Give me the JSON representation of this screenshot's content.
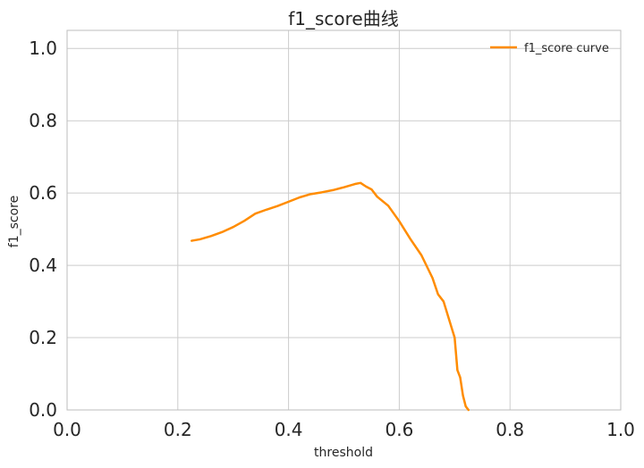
{
  "chart_data": {
    "type": "line",
    "title": "f1_score曲线",
    "xlabel": "threshold",
    "ylabel": "f1_score",
    "xlim": [
      0.0,
      1.0
    ],
    "ylim": [
      0.0,
      1.05
    ],
    "x_ticks": [
      "0.0",
      "0.2",
      "0.4",
      "0.6",
      "0.8",
      "1.0"
    ],
    "y_ticks": [
      "0.0",
      "0.2",
      "0.4",
      "0.6",
      "0.8",
      "1.0"
    ],
    "grid": true,
    "legend": "top-right",
    "series": [
      {
        "name": "f1_score curve",
        "color": "#ff8c00",
        "points": [
          [
            0.225,
            0.468
          ],
          [
            0.24,
            0.472
          ],
          [
            0.26,
            0.481
          ],
          [
            0.28,
            0.492
          ],
          [
            0.3,
            0.506
          ],
          [
            0.32,
            0.523
          ],
          [
            0.34,
            0.543
          ],
          [
            0.36,
            0.554
          ],
          [
            0.38,
            0.564
          ],
          [
            0.4,
            0.576
          ],
          [
            0.42,
            0.588
          ],
          [
            0.44,
            0.597
          ],
          [
            0.46,
            0.602
          ],
          [
            0.48,
            0.608
          ],
          [
            0.5,
            0.616
          ],
          [
            0.52,
            0.625
          ],
          [
            0.53,
            0.628
          ],
          [
            0.54,
            0.618
          ],
          [
            0.55,
            0.61
          ],
          [
            0.56,
            0.59
          ],
          [
            0.58,
            0.565
          ],
          [
            0.6,
            0.522
          ],
          [
            0.62,
            0.473
          ],
          [
            0.64,
            0.428
          ],
          [
            0.66,
            0.365
          ],
          [
            0.67,
            0.32
          ],
          [
            0.68,
            0.3
          ],
          [
            0.69,
            0.25
          ],
          [
            0.7,
            0.2
          ],
          [
            0.705,
            0.11
          ],
          [
            0.71,
            0.09
          ],
          [
            0.715,
            0.04
          ],
          [
            0.72,
            0.01
          ],
          [
            0.725,
            0.0
          ]
        ]
      }
    ]
  }
}
